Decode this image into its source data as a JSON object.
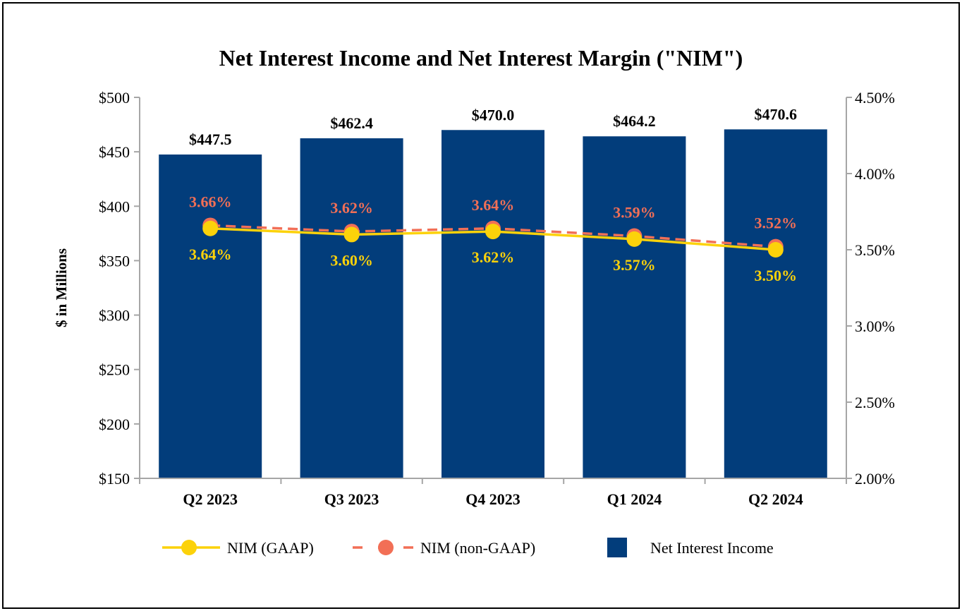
{
  "chart_data": {
    "type": "bar+line",
    "title": "Net Interest Income and Net Interest Margin (\"NIM\")",
    "ylabel": "$ in Millions",
    "y2label": "",
    "categories": [
      "Q2 2023",
      "Q3 2023",
      "Q4 2023",
      "Q1 2024",
      "Q2 2024"
    ],
    "ylim": [
      150,
      500
    ],
    "yticks": [
      "$150",
      "$200",
      "$250",
      "$300",
      "$350",
      "$400",
      "$450",
      "$500"
    ],
    "y2lim": [
      2.0,
      4.5
    ],
    "y2ticks": [
      "2.00%",
      "2.50%",
      "3.00%",
      "3.50%",
      "4.00%",
      "4.50%"
    ],
    "grid": false,
    "legend_position": "bottom",
    "series": [
      {
        "name": "Net Interest Income",
        "type": "bar",
        "axis": "left",
        "color": "#023d7b",
        "values": [
          447.5,
          462.4,
          470.0,
          464.2,
          470.6
        ],
        "labels": [
          "$447.5",
          "$462.4",
          "$470.0",
          "$464.2",
          "$470.6"
        ]
      },
      {
        "name": "NIM (GAAP)",
        "type": "line",
        "axis": "right",
        "color": "#fcd20a",
        "values": [
          3.64,
          3.6,
          3.62,
          3.57,
          3.5
        ],
        "labels": [
          "3.64%",
          "3.60%",
          "3.62%",
          "3.57%",
          "3.50%"
        ]
      },
      {
        "name": "NIM (non-GAAP)",
        "type": "line",
        "dashed": true,
        "axis": "right",
        "color": "#f26f56",
        "values": [
          3.66,
          3.62,
          3.64,
          3.59,
          3.52
        ],
        "labels": [
          "3.66%",
          "3.62%",
          "3.64%",
          "3.59%",
          "3.52%"
        ]
      }
    ]
  }
}
